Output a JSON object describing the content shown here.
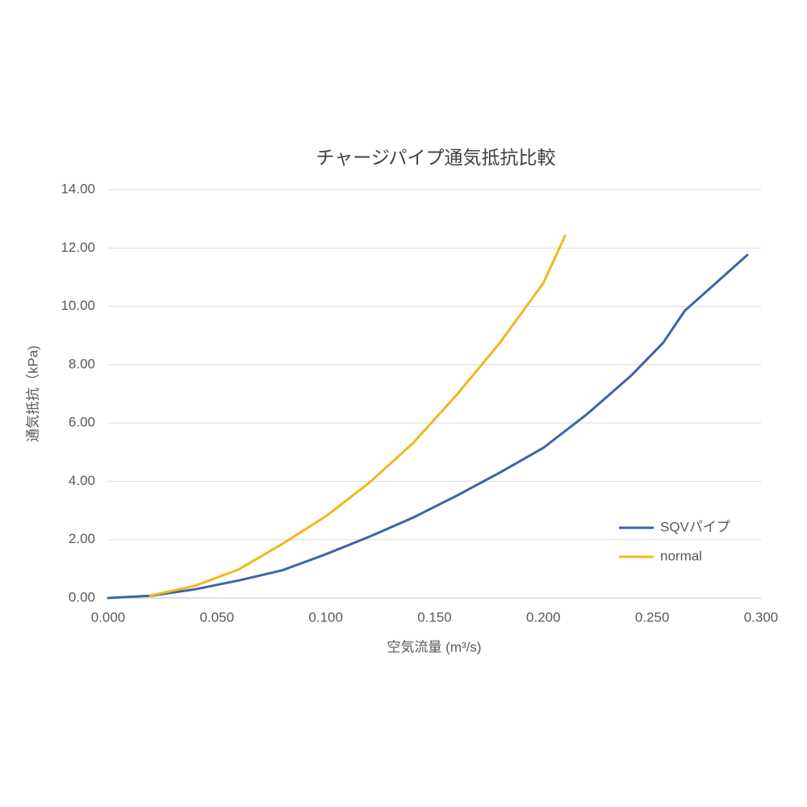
{
  "chart_data": {
    "type": "line",
    "title": "チャージパイプ通気抵抗比較",
    "x_label": "空気流量 (m³/s)",
    "y_label": "通気抵抗（kPa)",
    "xlim": [
      0,
      0.3
    ],
    "ylim": [
      0,
      14
    ],
    "xticks": [
      {
        "value": 0,
        "label": "0.000"
      },
      {
        "value": 0.05,
        "label": "0.050"
      },
      {
        "value": 0.1,
        "label": "0.100"
      },
      {
        "value": 0.15,
        "label": "0.150"
      },
      {
        "value": 0.2,
        "label": "0.200"
      },
      {
        "value": 0.25,
        "label": "0.250"
      },
      {
        "value": 0.3,
        "label": "0.300"
      }
    ],
    "yticks": [
      {
        "value": 0,
        "label": "0.00"
      },
      {
        "value": 2,
        "label": "2.00"
      },
      {
        "value": 4,
        "label": "4.00"
      },
      {
        "value": 6,
        "label": "6.00"
      },
      {
        "value": 8,
        "label": "8.00"
      },
      {
        "value": 10,
        "label": "10.00"
      },
      {
        "value": 12,
        "label": "12.00"
      },
      {
        "value": 14,
        "label": "14.00"
      }
    ],
    "grid": true,
    "legend": "lower right",
    "series": [
      {
        "name": "SQVパイプ",
        "color": "#3d65a8",
        "x": [
          0,
          0.02,
          0.04,
          0.06,
          0.08,
          0.1,
          0.12,
          0.14,
          0.16,
          0.18,
          0.2,
          0.22,
          0.24,
          0.255,
          0.265,
          0.2937
        ],
        "values": [
          0,
          0.08,
          0.3,
          0.6,
          0.95,
          1.5,
          2.1,
          2.75,
          3.5,
          4.3,
          5.15,
          6.3,
          7.6,
          8.75,
          9.85,
          11.76
        ]
      },
      {
        "name": "normal",
        "color": "#f0b81c",
        "x": [
          0.0193,
          0.04,
          0.06,
          0.08,
          0.1,
          0.12,
          0.14,
          0.16,
          0.18,
          0.2,
          0.21
        ],
        "values": [
          0.08,
          0.42,
          0.98,
          1.85,
          2.8,
          3.95,
          5.3,
          6.95,
          8.75,
          10.8,
          12.42
        ]
      }
    ]
  }
}
